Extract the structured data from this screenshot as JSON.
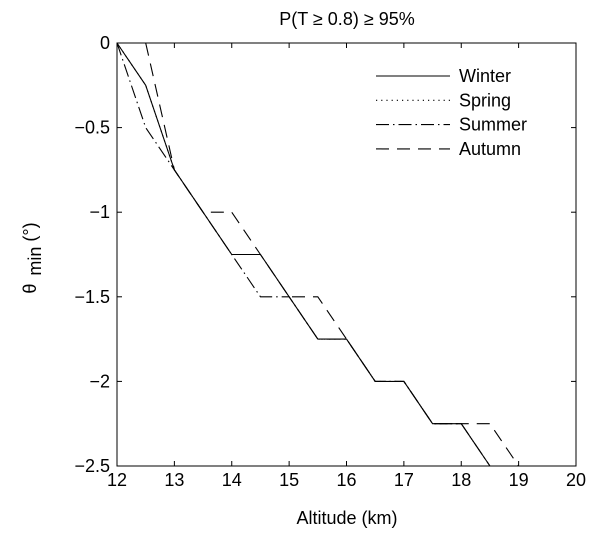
{
  "chart_data": {
    "type": "line",
    "title": "P(T ≥ 0.8) ≥ 95%",
    "xlabel": "Altitude (km)",
    "ylabel": {
      "symbol": "θ",
      "subscript": "min",
      "unit": " (°)"
    },
    "xlim": [
      12,
      20
    ],
    "ylim": [
      -2.5,
      0
    ],
    "xticks": [
      12,
      13,
      14,
      15,
      16,
      17,
      18,
      19,
      20
    ],
    "yticks": [
      0,
      -0.5,
      -1,
      -1.5,
      -2,
      -2.5
    ],
    "xtick_labels": [
      "12",
      "13",
      "14",
      "15",
      "16",
      "17",
      "18",
      "19",
      "20"
    ],
    "ytick_labels": [
      "0",
      "−0.5",
      "−1",
      "−1.5",
      "−2",
      "−2.5"
    ],
    "grid": false,
    "legend_position": "top-right",
    "series": [
      {
        "name": "Winter",
        "line_style": "solid",
        "x": [
          12,
          12.5,
          13,
          13.5,
          14,
          14.5,
          15,
          15.5,
          16,
          16.5,
          17,
          17.5,
          18,
          18.5
        ],
        "y": [
          0,
          -0.25,
          -0.75,
          -1,
          -1.25,
          -1.25,
          -1.5,
          -1.75,
          -1.75,
          -2,
          -2,
          -2.25,
          -2.25,
          -2.5
        ]
      },
      {
        "name": "Spring",
        "line_style": "dotted",
        "x": [
          12,
          12.5,
          13,
          13.5,
          14,
          14.5,
          15,
          15.5,
          16,
          16.5,
          17,
          17.5,
          18,
          18.5
        ],
        "y": [
          0,
          -0.25,
          -0.75,
          -1,
          -1.25,
          -1.25,
          -1.5,
          -1.75,
          -1.75,
          -2,
          -2,
          -2.25,
          -2.25,
          -2.5
        ]
      },
      {
        "name": "Summer",
        "line_style": "dashdot",
        "x": [
          12,
          12.5,
          13,
          13.5,
          14,
          14.5,
          15,
          15.5,
          16,
          16.5,
          17,
          17.5,
          18,
          18.5
        ],
        "y": [
          0,
          -0.5,
          -0.75,
          -1,
          -1.25,
          -1.5,
          -1.5,
          -1.75,
          -1.75,
          -2,
          -2,
          -2.25,
          -2.25,
          -2.5
        ]
      },
      {
        "name": "Autumn",
        "line_style": "dashed",
        "x": [
          12.5,
          13,
          13.5,
          14,
          14.5,
          15,
          15.5,
          16,
          16.5,
          17,
          17.5,
          18,
          18.5,
          19
        ],
        "y": [
          0,
          -0.75,
          -1,
          -1,
          -1.25,
          -1.5,
          -1.5,
          -1.75,
          -2,
          -2,
          -2.25,
          -2.25,
          -2.25,
          -2.5
        ]
      }
    ]
  }
}
